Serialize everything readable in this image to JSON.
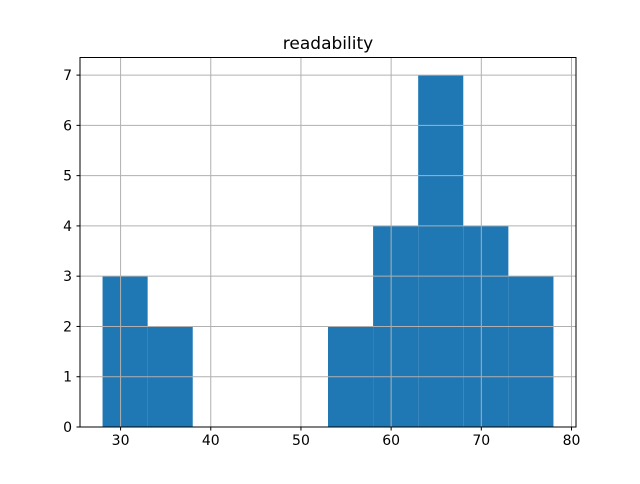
{
  "figure": {
    "background": "#ffffff"
  },
  "chart_data": {
    "type": "bar",
    "subtype": "histogram",
    "title": "readability",
    "xlabel": "",
    "ylabel": "",
    "bin_edges": [
      28,
      33,
      38,
      43,
      48,
      53,
      58,
      63,
      68,
      73,
      78
    ],
    "counts": [
      3,
      2,
      0,
      0,
      0,
      2,
      4,
      7,
      4,
      3
    ],
    "xticks": [
      30,
      40,
      50,
      60,
      70,
      80
    ],
    "yticks": [
      0,
      1,
      2,
      3,
      4,
      5,
      6,
      7
    ],
    "xlim": [
      25.5,
      80.5
    ],
    "ylim": [
      0,
      7.35
    ],
    "grid": true,
    "grid_on_top": true,
    "legend": false,
    "bar_color": "#1f77b4",
    "grid_color": "#b0b0b0",
    "spine_color": "#000000",
    "tick_color": "#000000",
    "text_color": "#000000"
  }
}
